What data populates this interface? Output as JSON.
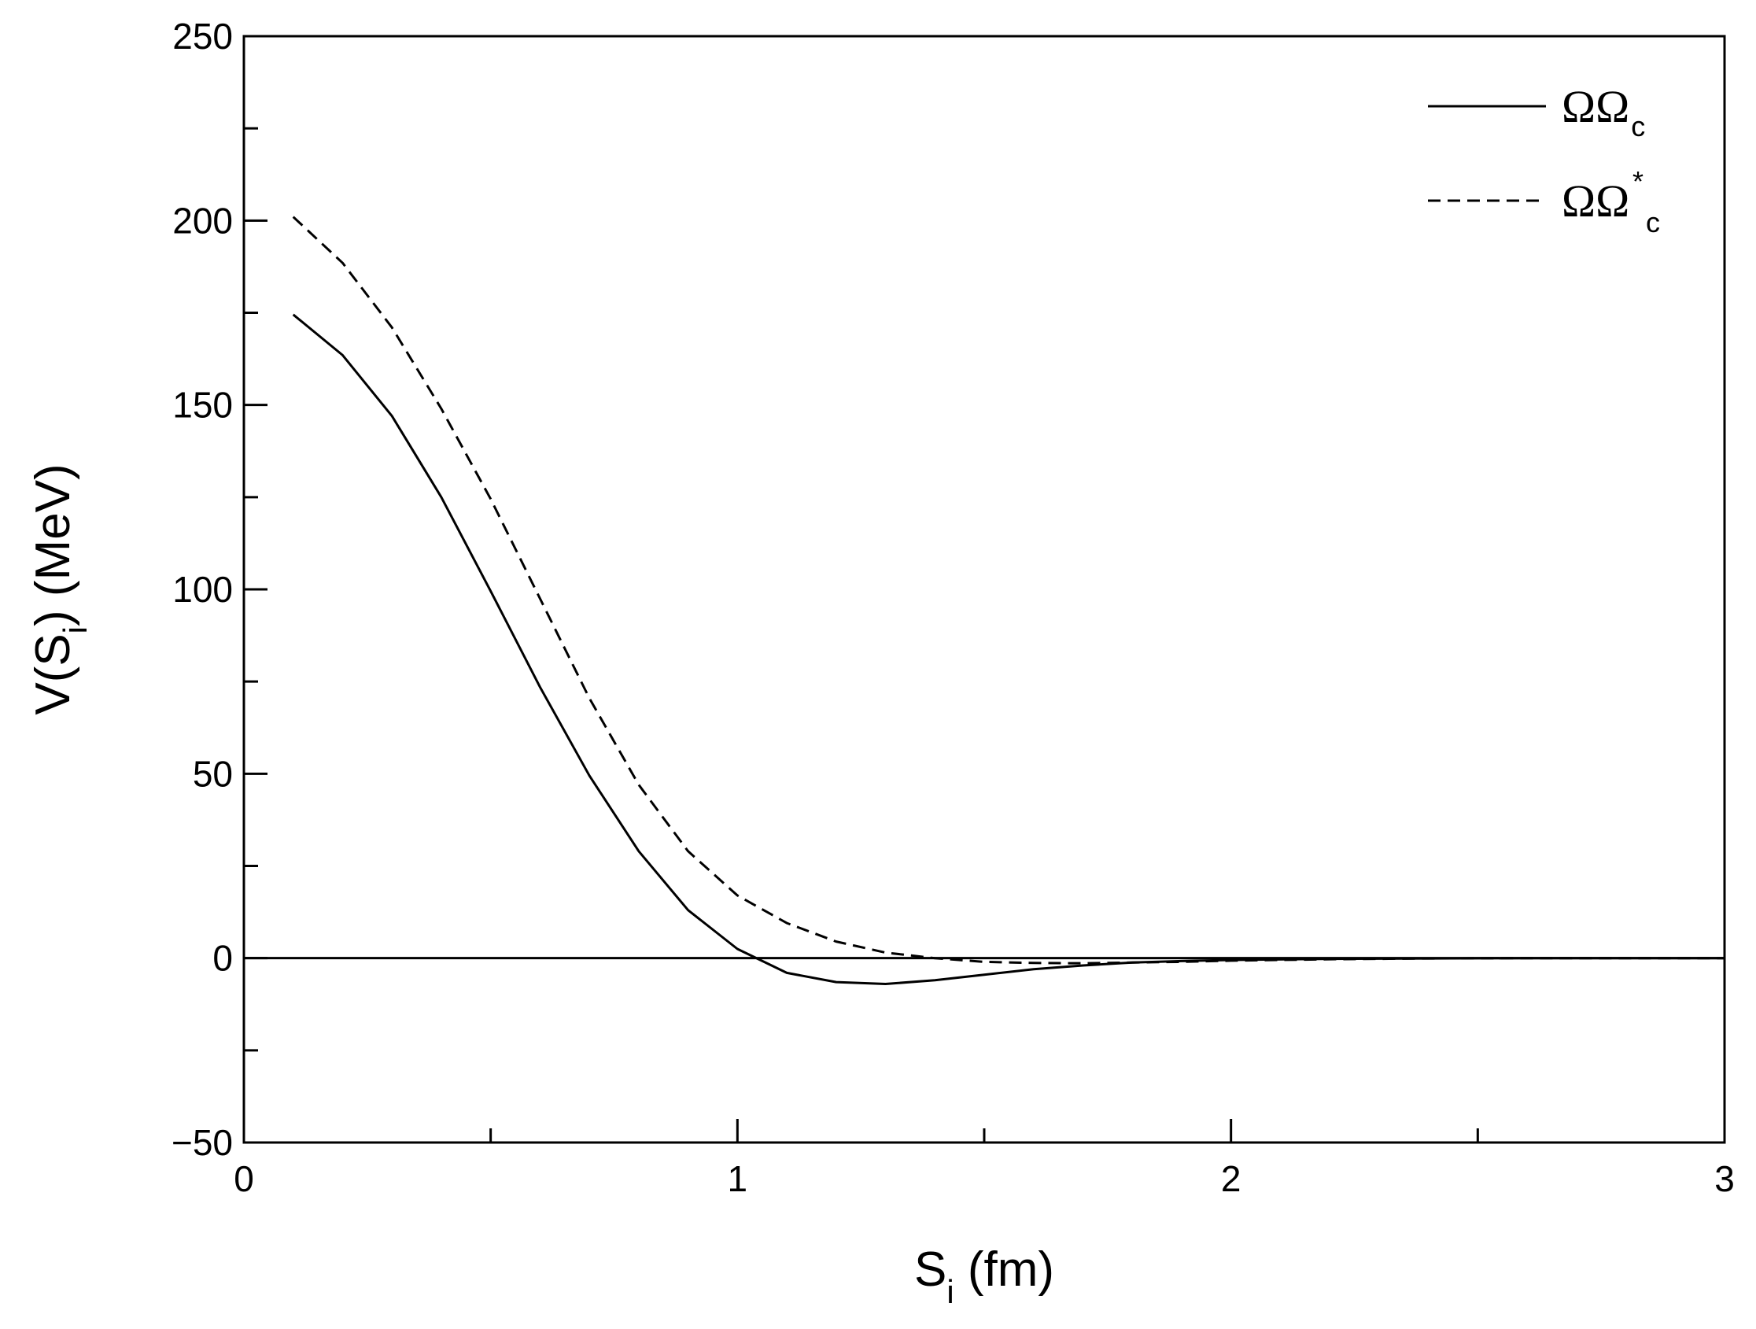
{
  "chart_data": {
    "type": "line",
    "xlabel": {
      "base": "S",
      "sub": "i",
      "rest": " (fm)"
    },
    "ylabel": {
      "base": "V(S",
      "sub": "i",
      "rest": ") (MeV)"
    },
    "xlim": [
      0,
      3
    ],
    "ylim": [
      -50,
      250
    ],
    "x_ticks": [
      0,
      1,
      2,
      3
    ],
    "x_tick_labels": [
      "0",
      "1",
      "2",
      "3"
    ],
    "y_ticks": [
      -50,
      0,
      50,
      100,
      150,
      200,
      250
    ],
    "y_tick_labels": [
      "−50",
      "0",
      "50",
      "100",
      "150",
      "200",
      "250"
    ],
    "grid": false,
    "legend_position": "top-right",
    "zero_line": true,
    "series": [
      {
        "name": "ΩΩ_c",
        "legend": {
          "base": "ΩΩ",
          "sub": "c",
          "sup": ""
        },
        "style": "solid",
        "color": "#000000",
        "x": [
          0.1,
          0.2,
          0.3,
          0.4,
          0.5,
          0.6,
          0.7,
          0.8,
          0.9,
          1.0,
          1.1,
          1.2,
          1.3,
          1.4,
          1.5,
          1.6,
          1.7,
          1.8,
          1.9,
          2.0,
          2.2,
          2.4,
          2.6,
          2.8,
          3.0
        ],
        "y": [
          174.5,
          163.5,
          147,
          125,
          99.5,
          73.5,
          49.5,
          29,
          13,
          2.5,
          -4,
          -6.5,
          -7,
          -6,
          -4.5,
          -3,
          -2,
          -1.2,
          -0.8,
          -0.5,
          -0.2,
          -0.1,
          0,
          0,
          0
        ]
      },
      {
        "name": "ΩΩ*_c",
        "legend": {
          "base": "ΩΩ",
          "sub": "c",
          "sup": "*"
        },
        "style": "dashed",
        "color": "#000000",
        "x": [
          0.1,
          0.2,
          0.3,
          0.4,
          0.5,
          0.6,
          0.7,
          0.8,
          0.9,
          1.0,
          1.1,
          1.2,
          1.3,
          1.4,
          1.5,
          1.6,
          1.7,
          1.8,
          1.9,
          2.0,
          2.2,
          2.4,
          2.6,
          2.8,
          3.0
        ],
        "y": [
          201,
          188.5,
          171,
          149,
          124.5,
          97.5,
          70.5,
          47,
          29,
          17,
          9.5,
          4.5,
          1.5,
          0,
          -1,
          -1.3,
          -1.4,
          -1.2,
          -1,
          -0.7,
          -0.3,
          -0.1,
          0,
          0,
          0
        ]
      }
    ]
  }
}
